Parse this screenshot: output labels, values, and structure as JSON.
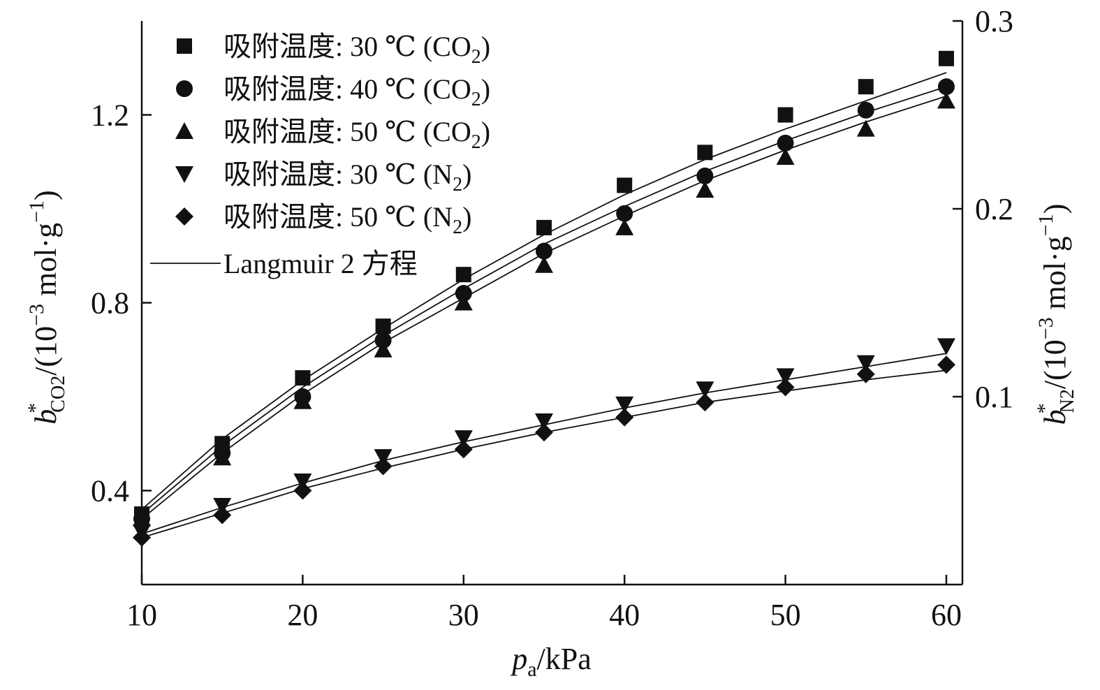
{
  "chart_data": {
    "type": "scatter",
    "x": [
      10,
      15,
      20,
      25,
      30,
      35,
      40,
      45,
      50,
      55,
      60
    ],
    "xlim": [
      10,
      61
    ],
    "xticks": [
      "10",
      "20",
      "30",
      "40",
      "50",
      "60"
    ],
    "xlabel": {
      "main": "p",
      "sub": "a",
      "rest": "/kPa"
    },
    "ylim_left": [
      0.2,
      1.4
    ],
    "yticks_left": [
      "0.4",
      "0.8",
      "1.2"
    ],
    "ylabel_left": {
      "main": "b",
      "sup": "*",
      "sub": "CO2",
      "rest": "/(10",
      "exp": "−3",
      "rest2": " mol·g",
      "exp2": "−1",
      "rest3": ")"
    },
    "ylim_right": [
      0.0,
      0.3
    ],
    "yticks_right": [
      "0.1",
      "0.2",
      "0.3"
    ],
    "ylabel_right": {
      "main": "b",
      "sup": "*",
      "sub": "N2",
      "rest": "/(10",
      "exp": "−3",
      "rest2": " mol·g",
      "exp2": "−1",
      "rest3": ")"
    },
    "series": [
      {
        "name": "吸附温度: 30 ℃ (CO2)",
        "label": {
          "main": "吸附温度: 30 ℃ (CO",
          "sub": "2",
          "end": ")"
        },
        "marker": "square",
        "axis": "left",
        "values": [
          0.35,
          0.5,
          0.64,
          0.75,
          0.86,
          0.96,
          1.05,
          1.12,
          1.2,
          1.26,
          1.32
        ],
        "fit": [
          0.36,
          0.51,
          0.635,
          0.745,
          0.85,
          0.945,
          1.03,
          1.105,
          1.17,
          1.23,
          1.29
        ]
      },
      {
        "name": "吸附温度: 40 ℃ (CO2)",
        "label": {
          "main": "吸附温度: 40 ℃ (CO",
          "sub": "2",
          "end": ")"
        },
        "marker": "circle",
        "axis": "left",
        "values": [
          0.34,
          0.48,
          0.6,
          0.72,
          0.82,
          0.91,
          0.99,
          1.07,
          1.14,
          1.21,
          1.26
        ],
        "fit": [
          0.35,
          0.495,
          0.62,
          0.73,
          0.83,
          0.925,
          1.005,
          1.08,
          1.145,
          1.205,
          1.26
        ]
      },
      {
        "name": "吸附温度: 50 ℃ (CO2)",
        "label": {
          "main": "吸附温度: 50 ℃ (CO",
          "sub": "2",
          "end": ")"
        },
        "marker": "triangle-up",
        "axis": "left",
        "values": [
          0.34,
          0.47,
          0.59,
          0.7,
          0.8,
          0.88,
          0.96,
          1.04,
          1.11,
          1.17,
          1.23
        ],
        "fit": [
          0.34,
          0.48,
          0.605,
          0.715,
          0.81,
          0.905,
          0.985,
          1.06,
          1.125,
          1.185,
          1.24
        ]
      },
      {
        "name": "吸附温度: 30 ℃ (N2)",
        "label": {
          "main": "吸附温度: 30 ℃ (N",
          "sub": "2",
          "end": ")"
        },
        "marker": "triangle-down",
        "axis": "right",
        "values": [
          0.028,
          0.042,
          0.055,
          0.068,
          0.078,
          0.087,
          0.096,
          0.104,
          0.111,
          0.118,
          0.127
        ],
        "fit": [
          0.027,
          0.041,
          0.054,
          0.066,
          0.076,
          0.085,
          0.094,
          0.102,
          0.109,
          0.116,
          0.123
        ]
      },
      {
        "name": "吸附温度: 50 ℃ (N2)",
        "label": {
          "main": "吸附温度: 50 ℃ (N",
          "sub": "2",
          "end": ")"
        },
        "marker": "diamond",
        "axis": "right",
        "values": [
          0.025,
          0.037,
          0.05,
          0.063,
          0.072,
          0.081,
          0.089,
          0.097,
          0.105,
          0.112,
          0.117
        ],
        "fit": [
          0.025,
          0.038,
          0.051,
          0.062,
          0.072,
          0.081,
          0.089,
          0.097,
          0.103,
          0.109,
          0.114
        ]
      }
    ],
    "fit_legend": "Langmuir 2 方程",
    "legend_position": "top-left",
    "grid": false
  }
}
